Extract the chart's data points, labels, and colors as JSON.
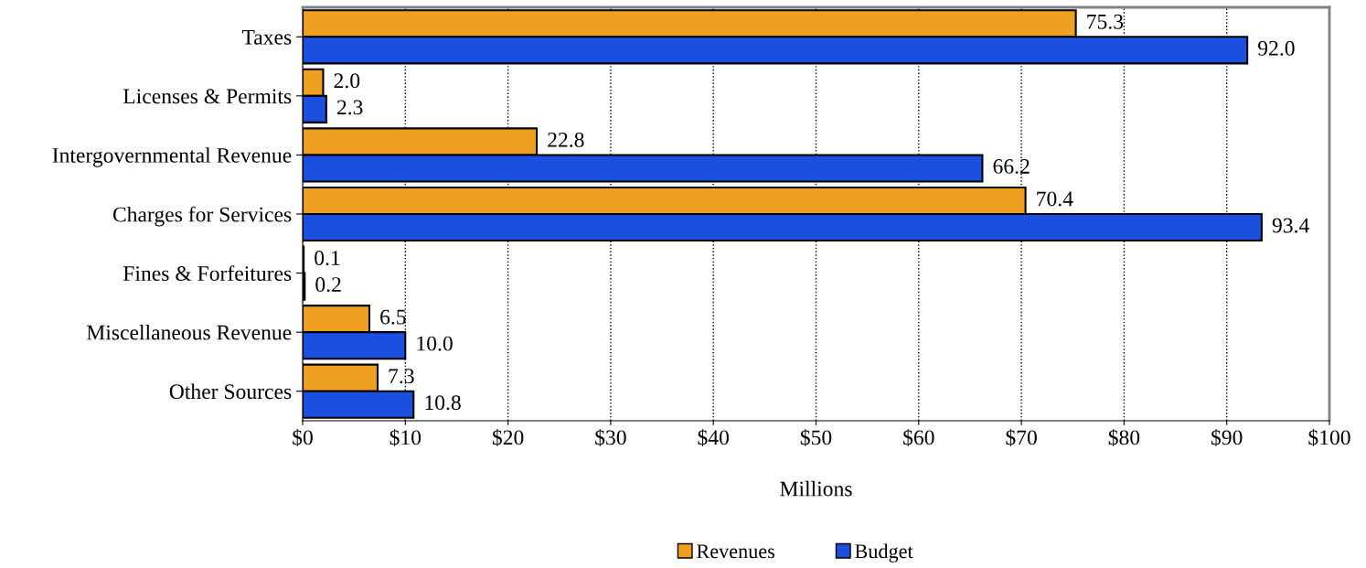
{
  "chart_data": {
    "type": "bar",
    "orientation": "horizontal",
    "xlabel": "Millions",
    "categories": [
      "Taxes",
      "Licenses & Permits",
      "Intergovernmental Revenue",
      "Charges for Services",
      "Fines & Forfeitures",
      "Miscellaneous Revenue",
      "Other Sources"
    ],
    "series": [
      {
        "name": "Revenues",
        "color": "#f0a020",
        "values": [
          75.3,
          2.0,
          22.8,
          70.4,
          0.1,
          6.5,
          7.3
        ],
        "value_labels": [
          "75.3",
          "2.0",
          "22.8",
          "70.4",
          "0.1",
          "6.5",
          "7.3"
        ]
      },
      {
        "name": "Budget",
        "color": "#1a4fe0",
        "values": [
          92.0,
          2.3,
          66.2,
          93.4,
          0.2,
          10.0,
          10.8
        ],
        "value_labels": [
          "92.0",
          "2.3",
          "66.2",
          "93.4",
          "0.2",
          "10.0",
          "10.8"
        ]
      }
    ],
    "xlim": [
      0,
      100
    ],
    "xticks": [
      {
        "value": 0,
        "label": "$0"
      },
      {
        "value": 10,
        "label": "$10"
      },
      {
        "value": 20,
        "label": "$20"
      },
      {
        "value": 30,
        "label": "$30"
      },
      {
        "value": 40,
        "label": "$40"
      },
      {
        "value": 50,
        "label": "$50"
      },
      {
        "value": 60,
        "label": "$60"
      },
      {
        "value": 70,
        "label": "$70"
      },
      {
        "value": 80,
        "label": "$80"
      },
      {
        "value": 90,
        "label": "$90"
      },
      {
        "value": 100,
        "label": "$100"
      }
    ],
    "grid": "x",
    "legend": "bottom"
  }
}
